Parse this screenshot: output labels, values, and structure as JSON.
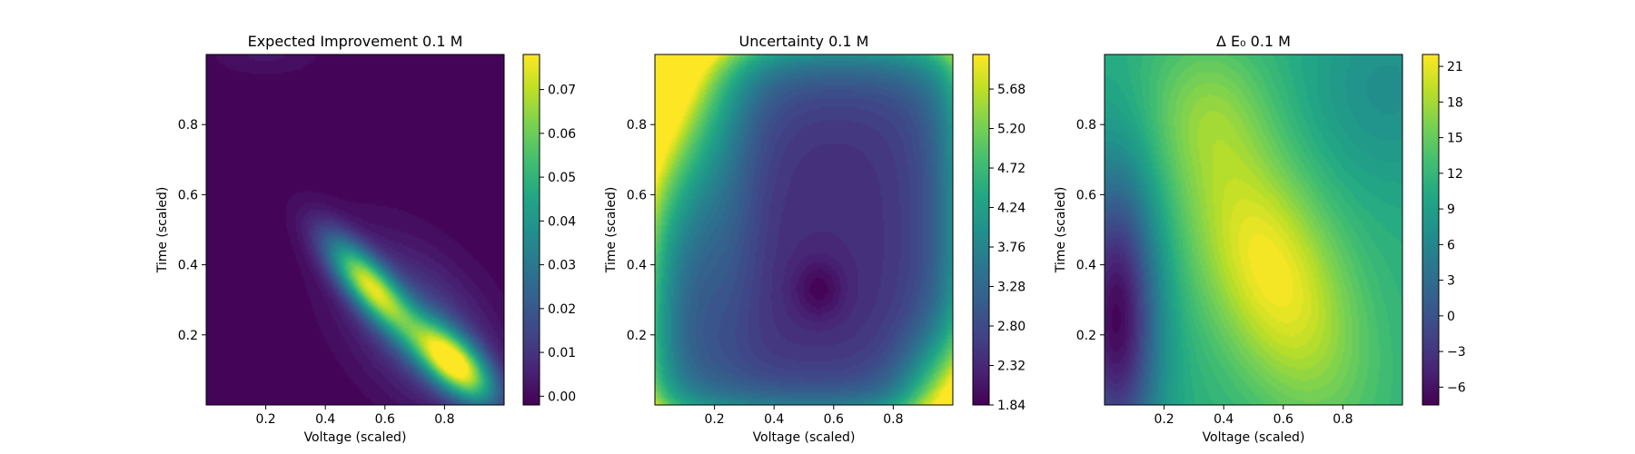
{
  "chart_data": [
    {
      "type": "heatmap",
      "title": "Expected Improvement 0.1 M",
      "xlabel": "Voltage (scaled)",
      "ylabel": "Time (scaled)",
      "xlim": [
        0,
        1
      ],
      "ylim": [
        0,
        1
      ],
      "xticks": [
        "0.2",
        "0.4",
        "0.6",
        "0.8"
      ],
      "yticks": [
        "0.2",
        "0.4",
        "0.6",
        "0.8"
      ],
      "colorbar": {
        "min": -0.002,
        "max": 0.078,
        "ticks": [
          "0.00",
          "0.01",
          "0.02",
          "0.03",
          "0.04",
          "0.05",
          "0.06",
          "0.07"
        ]
      },
      "colormap": "viridis",
      "features": [
        {
          "kind": "peak",
          "x": 0.55,
          "y": 0.34,
          "value": 0.066
        },
        {
          "kind": "peak",
          "x": 0.83,
          "y": 0.12,
          "value": 0.077
        }
      ]
    },
    {
      "type": "heatmap",
      "title": "Uncertainty 0.1 M",
      "xlabel": "Voltage (scaled)",
      "ylabel": "Time (scaled)",
      "xlim": [
        0,
        1
      ],
      "ylim": [
        0,
        1
      ],
      "xticks": [
        "0.2",
        "0.4",
        "0.6",
        "0.8"
      ],
      "yticks": [
        "0.2",
        "0.4",
        "0.6",
        "0.8"
      ],
      "colorbar": {
        "min": 1.84,
        "max": 6.1,
        "ticks": [
          "1.84",
          "2.32",
          "2.80",
          "3.28",
          "3.76",
          "4.24",
          "4.72",
          "5.20",
          "5.68"
        ]
      },
      "colormap": "viridis",
      "features": [
        {
          "kind": "minimum",
          "x": 0.55,
          "y": 0.33,
          "value": 1.9
        },
        {
          "kind": "high",
          "x": 0.0,
          "y": 1.0,
          "value": 6.1
        },
        {
          "kind": "high",
          "x": 1.0,
          "y": 0.0,
          "value": 4.8
        }
      ]
    },
    {
      "type": "heatmap",
      "title": "Δ E₀ 0.1 M",
      "xlabel": "Voltage (scaled)",
      "ylabel": "Time (scaled)",
      "xlim": [
        0,
        1
      ],
      "ylim": [
        0,
        1
      ],
      "xticks": [
        "0.2",
        "0.4",
        "0.6",
        "0.8"
      ],
      "yticks": [
        "0.2",
        "0.4",
        "0.6",
        "0.8"
      ],
      "colorbar": {
        "min": -7.5,
        "max": 22,
        "ticks": [
          "−6",
          "−3",
          "0",
          "3",
          "6",
          "9",
          "12",
          "15",
          "18",
          "21"
        ]
      },
      "colormap": "viridis",
      "features": [
        {
          "kind": "maximum",
          "x": 0.55,
          "y": 0.38,
          "value": 21.5
        },
        {
          "kind": "minimum",
          "x": 0.04,
          "y": 0.25,
          "value": -7.5
        }
      ]
    }
  ]
}
